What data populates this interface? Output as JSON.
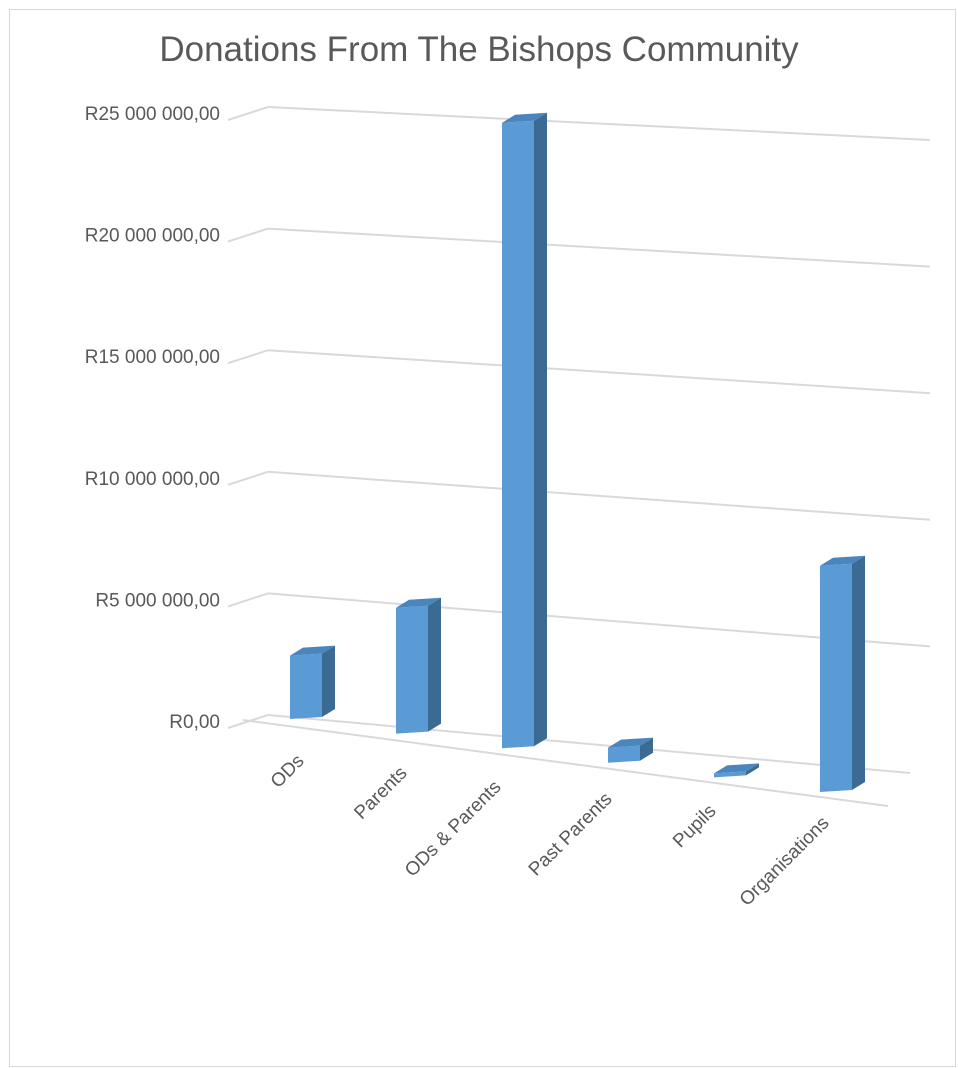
{
  "chart_data": {
    "type": "bar",
    "title": "Donations From The Bishops Community",
    "categories": [
      "ODs",
      "Parents",
      "ODs & Parents",
      "Past Parents",
      "Pupils",
      "Organisations"
    ],
    "values": [
      2600000,
      5100000,
      25000000,
      600000,
      80000,
      8700000
    ],
    "y_ticks": [
      "R0,00",
      "R5 000 000,00",
      "R10 000 000,00",
      "R15 000 000,00",
      "R20 000 000,00",
      "R25 000 000,00"
    ],
    "ylim": [
      0,
      25000000
    ],
    "grid": true,
    "legend": "none",
    "colors": {
      "bar_front": "#5b9bd5",
      "bar_top": "#4a86bd",
      "bar_side": "#3b6a93",
      "grid": "#d9d9d9",
      "text": "#595959"
    }
  }
}
